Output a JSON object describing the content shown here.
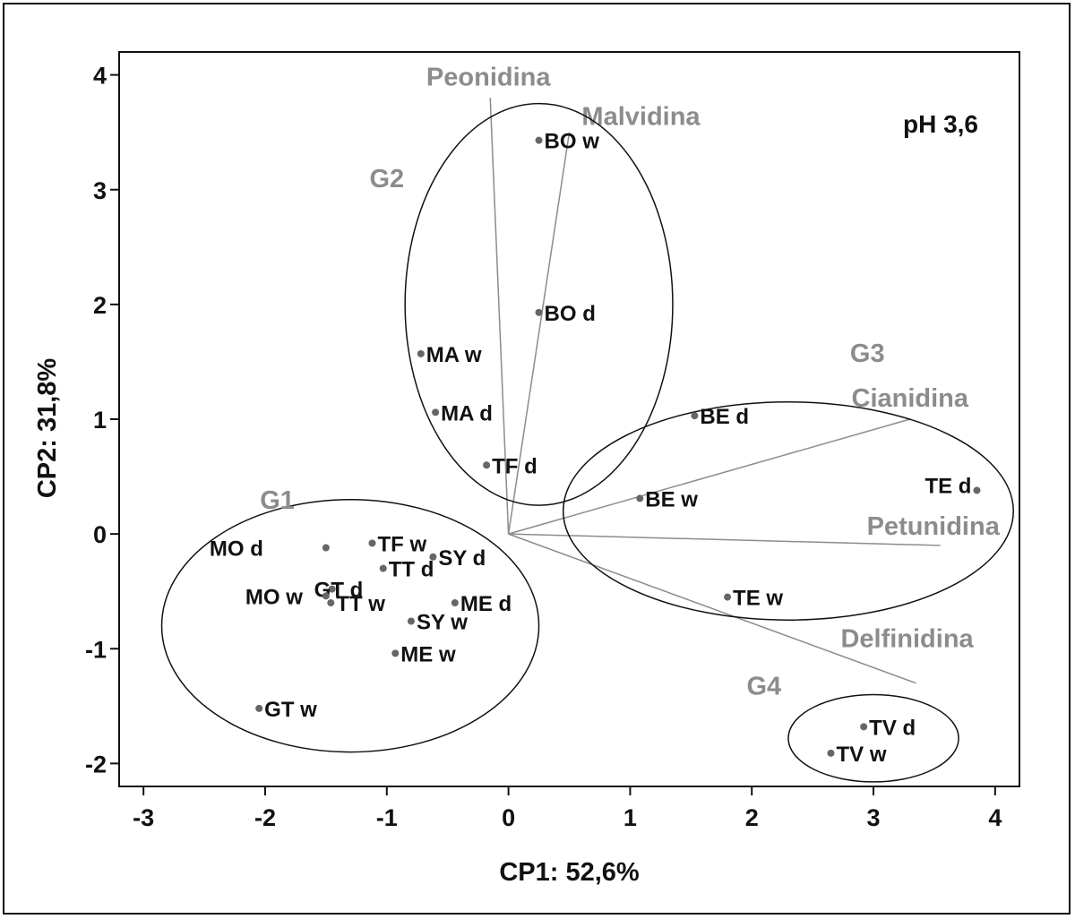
{
  "chart_data": {
    "type": "scatter",
    "xlabel": "CP1: 52,6%",
    "ylabel": "CP2: 31,8%",
    "xlim": [
      -3.2,
      4.2
    ],
    "ylim": [
      -2.2,
      4.2
    ],
    "xticks": [
      "-3",
      "-2",
      "-1",
      "0",
      "1",
      "2",
      "3",
      "4"
    ],
    "yticks": [
      "-2",
      "-1",
      "0",
      "1",
      "2",
      "3",
      "4"
    ],
    "xtick_values": [
      -3,
      -2,
      -1,
      0,
      1,
      2,
      3,
      4
    ],
    "ytick_values": [
      -2,
      -1,
      0,
      1,
      2,
      3,
      4
    ],
    "annotation": "pH 3,6",
    "points": [
      {
        "label": "BO w",
        "x": 0.25,
        "y": 3.43
      },
      {
        "label": "BO d",
        "x": 0.25,
        "y": 1.93
      },
      {
        "label": "MA w",
        "x": -0.72,
        "y": 1.57
      },
      {
        "label": "MA d",
        "x": -0.6,
        "y": 1.06
      },
      {
        "label": "TF d",
        "x": -0.18,
        "y": 0.6
      },
      {
        "label": "BE d",
        "x": 1.53,
        "y": 1.03
      },
      {
        "label": "BE w",
        "x": 1.08,
        "y": 0.31
      },
      {
        "label": "TE d",
        "x": 3.85,
        "y": 0.38
      },
      {
        "label": "TE w",
        "x": 1.8,
        "y": -0.55
      },
      {
        "label": "TV d",
        "x": 2.92,
        "y": -1.68
      },
      {
        "label": "TV w",
        "x": 2.65,
        "y": -1.91
      },
      {
        "label": "MO d",
        "x": -1.5,
        "y": -0.12
      },
      {
        "label": "TF w",
        "x": -1.12,
        "y": -0.08
      },
      {
        "label": "SY d",
        "x": -0.62,
        "y": -0.2
      },
      {
        "label": "GT d",
        "x": -1.45,
        "y": -0.48
      },
      {
        "label": "TT d",
        "x": -1.03,
        "y": -0.3
      },
      {
        "label": "MO w",
        "x": -1.5,
        "y": -0.54
      },
      {
        "label": "TT w",
        "x": -1.46,
        "y": -0.6
      },
      {
        "label": "ME d",
        "x": -0.44,
        "y": -0.6
      },
      {
        "label": "SY w",
        "x": -0.8,
        "y": -0.76
      },
      {
        "label": "ME w",
        "x": -0.93,
        "y": -1.04
      },
      {
        "label": "GT w",
        "x": -2.05,
        "y": -1.52
      }
    ],
    "vectors": [
      {
        "label": "Peonidina",
        "x": -0.15,
        "y": 3.8
      },
      {
        "label": "Malvidina",
        "x": 0.5,
        "y": 3.5
      },
      {
        "label": "Cianidina",
        "x": 3.3,
        "y": 1.0
      },
      {
        "label": "Petunidina",
        "x": 3.55,
        "y": -0.1
      },
      {
        "label": "Delfinidina",
        "x": 3.35,
        "y": -1.3
      }
    ],
    "groups": [
      {
        "label": "G1",
        "cx": -1.3,
        "cy": -0.8,
        "rx": 1.55,
        "ry": 1.1
      },
      {
        "label": "G2",
        "cx": 0.25,
        "cy": 2.0,
        "rx": 1.1,
        "ry": 1.75
      },
      {
        "label": "G3",
        "cx": 2.3,
        "cy": 0.2,
        "rx": 1.85,
        "ry": 0.95
      },
      {
        "label": "G4",
        "cx": 3.0,
        "cy": -1.78,
        "rx": 0.7,
        "ry": 0.38
      }
    ]
  }
}
